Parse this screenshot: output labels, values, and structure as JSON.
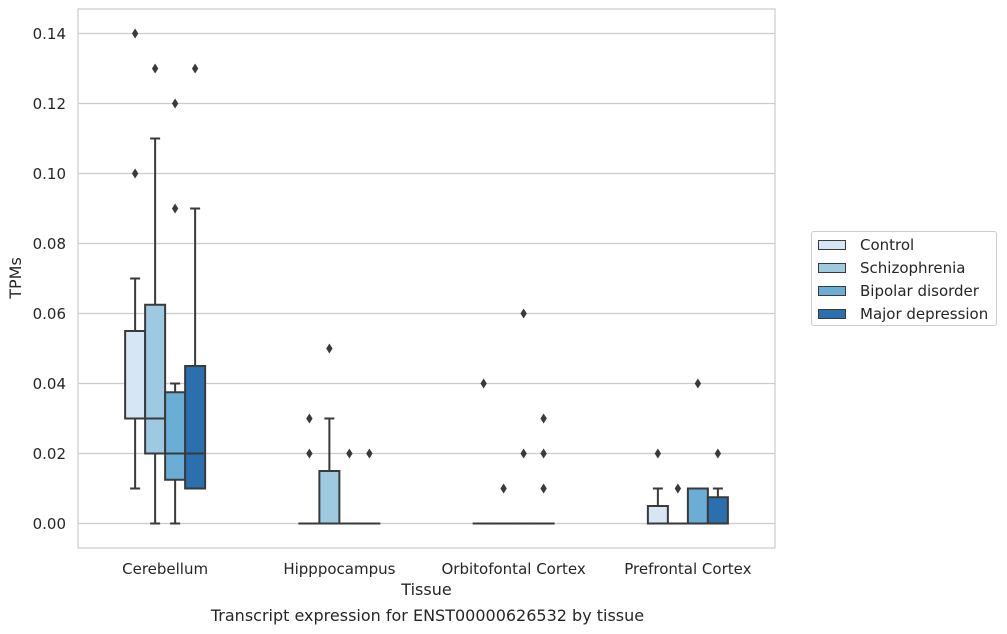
{
  "chart_data": {
    "type": "box",
    "title": "",
    "xlabel": "Tissue",
    "ylabel": "TPMs",
    "caption": "Transcript expression for ENST00000626532 by tissue",
    "ylim": [
      -0.007,
      0.147
    ],
    "yticks": [
      "0.00",
      "0.02",
      "0.04",
      "0.06",
      "0.08",
      "0.10",
      "0.12",
      "0.14"
    ],
    "ytick_values": [
      0,
      0.02,
      0.04,
      0.06,
      0.08,
      0.1,
      0.12,
      0.14
    ],
    "categories": [
      "Cerebellum",
      "Hipppocampus",
      "Orbitofontal Cortex",
      "Prefrontal Cortex"
    ],
    "grid": "horizontal",
    "legend_position": "right",
    "series": [
      {
        "name": "Control",
        "color": "#d6e6f4",
        "boxes": [
          {
            "whislo": 0.01,
            "q1": 0.03,
            "med": 0.03,
            "q3": 0.055,
            "whishi": 0.07,
            "fliers": [
              0.1,
              0.14
            ]
          },
          {
            "whislo": 0,
            "q1": 0,
            "med": 0,
            "q3": 0,
            "whishi": 0,
            "fliers": [
              0.02,
              0.03
            ]
          },
          {
            "whislo": 0,
            "q1": 0,
            "med": 0,
            "q3": 0,
            "whishi": 0,
            "fliers": [
              0.04
            ]
          },
          {
            "whislo": 0,
            "q1": 0,
            "med": 0,
            "q3": 0.005,
            "whishi": 0.01,
            "fliers": [
              0.02
            ]
          }
        ]
      },
      {
        "name": "Schizophrenia",
        "color": "#9ecae1",
        "boxes": [
          {
            "whislo": 0,
            "q1": 0.02,
            "med": 0.03,
            "q3": 0.0625,
            "whishi": 0.11,
            "fliers": [
              0.13
            ]
          },
          {
            "whislo": 0,
            "q1": 0,
            "med": 0,
            "q3": 0.015,
            "whishi": 0.03,
            "fliers": [
              0.05
            ]
          },
          {
            "whislo": 0,
            "q1": 0,
            "med": 0,
            "q3": 0,
            "whishi": 0,
            "fliers": [
              0.01
            ]
          },
          {
            "whislo": 0,
            "q1": 0,
            "med": 0,
            "q3": 0,
            "whishi": 0,
            "fliers": [
              0.01
            ]
          }
        ]
      },
      {
        "name": "Bipolar disorder",
        "color": "#6aaed6",
        "boxes": [
          {
            "whislo": 0,
            "q1": 0.0125,
            "med": 0.02,
            "q3": 0.0375,
            "whishi": 0.04,
            "fliers": [
              0.09,
              0.12
            ]
          },
          {
            "whislo": 0,
            "q1": 0,
            "med": 0,
            "q3": 0,
            "whishi": 0,
            "fliers": [
              0.02
            ]
          },
          {
            "whislo": 0,
            "q1": 0,
            "med": 0,
            "q3": 0,
            "whishi": 0,
            "fliers": [
              0.02,
              0.06
            ]
          },
          {
            "whislo": 0,
            "q1": 0,
            "med": 0,
            "q3": 0.01,
            "whishi": 0.01,
            "fliers": [
              0.04
            ]
          }
        ]
      },
      {
        "name": "Major depression",
        "color": "#2b6fae",
        "boxes": [
          {
            "whislo": 0.01,
            "q1": 0.01,
            "med": 0.02,
            "q3": 0.045,
            "whishi": 0.09,
            "fliers": [
              0.13
            ]
          },
          {
            "whislo": 0,
            "q1": 0,
            "med": 0,
            "q3": 0,
            "whishi": 0,
            "fliers": [
              0.02
            ]
          },
          {
            "whislo": 0,
            "q1": 0,
            "med": 0,
            "q3": 0,
            "whishi": 0,
            "fliers": [
              0.01,
              0.02,
              0.03
            ]
          },
          {
            "whislo": 0,
            "q1": 0,
            "med": 0,
            "q3": 0.0075,
            "whishi": 0.01,
            "fliers": [
              0.02
            ]
          }
        ]
      }
    ]
  }
}
